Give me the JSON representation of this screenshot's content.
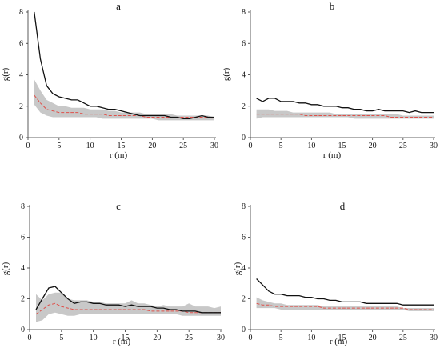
{
  "chart_data": [
    {
      "type": "line",
      "title": "a",
      "xlabel": "r (m)",
      "ylabel": "g(r)",
      "xlim": [
        0,
        30
      ],
      "ylim": [
        0,
        8
      ],
      "xticks": [
        0,
        5,
        10,
        15,
        20,
        25,
        30
      ],
      "yticks": [
        0,
        2,
        4,
        6,
        8
      ],
      "grid": false,
      "observed": {
        "x": [
          1,
          2,
          3,
          4,
          5,
          6,
          7,
          8,
          9,
          10,
          11,
          12,
          13,
          14,
          15,
          16,
          17,
          18,
          19,
          20,
          21,
          22,
          23,
          24,
          25,
          26,
          27,
          28,
          29,
          30
        ],
        "y": [
          8.0,
          5.0,
          3.3,
          2.8,
          2.6,
          2.5,
          2.4,
          2.4,
          2.2,
          2.0,
          2.0,
          1.9,
          1.8,
          1.8,
          1.7,
          1.6,
          1.5,
          1.4,
          1.4,
          1.4,
          1.4,
          1.4,
          1.3,
          1.3,
          1.2,
          1.2,
          1.3,
          1.4,
          1.3,
          1.3
        ]
      },
      "expected": {
        "x": [
          1,
          2,
          3,
          4,
          5,
          6,
          7,
          8,
          9,
          10,
          11,
          12,
          13,
          14,
          15,
          16,
          17,
          18,
          19,
          20,
          21,
          22,
          23,
          24,
          25,
          26,
          27,
          28,
          29,
          30
        ],
        "y": [
          2.7,
          2.2,
          1.8,
          1.7,
          1.6,
          1.6,
          1.6,
          1.6,
          1.5,
          1.5,
          1.5,
          1.5,
          1.4,
          1.4,
          1.4,
          1.4,
          1.4,
          1.4,
          1.3,
          1.3,
          1.3,
          1.3,
          1.3,
          1.3,
          1.3,
          1.3,
          1.3,
          1.3,
          1.3,
          1.2
        ]
      },
      "envelope": {
        "x": [
          1,
          2,
          3,
          4,
          5,
          6,
          7,
          8,
          9,
          10,
          11,
          12,
          13,
          14,
          15,
          16,
          17,
          18,
          19,
          20,
          21,
          22,
          23,
          24,
          25,
          26,
          27,
          28,
          29,
          30
        ],
        "upper": [
          3.7,
          3.0,
          2.4,
          2.2,
          2.0,
          2.0,
          1.9,
          1.9,
          1.9,
          1.8,
          1.8,
          1.8,
          1.7,
          1.7,
          1.6,
          1.6,
          1.6,
          1.6,
          1.5,
          1.5,
          1.5,
          1.5,
          1.5,
          1.4,
          1.4,
          1.4,
          1.4,
          1.4,
          1.4,
          1.3
        ],
        "lower": [
          2.1,
          1.6,
          1.4,
          1.3,
          1.3,
          1.3,
          1.3,
          1.3,
          1.3,
          1.3,
          1.3,
          1.2,
          1.2,
          1.2,
          1.2,
          1.2,
          1.2,
          1.2,
          1.2,
          1.2,
          1.1,
          1.1,
          1.1,
          1.1,
          1.1,
          1.1,
          1.1,
          1.1,
          1.1,
          1.1
        ]
      }
    },
    {
      "type": "line",
      "title": "b",
      "xlabel": "r (m)",
      "ylabel": "g(r)",
      "xlim": [
        0,
        30
      ],
      "ylim": [
        0,
        8
      ],
      "xticks": [
        0,
        5,
        10,
        15,
        20,
        25,
        30
      ],
      "yticks": [
        0,
        2,
        4,
        6,
        8
      ],
      "grid": false,
      "observed": {
        "x": [
          1,
          2,
          3,
          4,
          5,
          6,
          7,
          8,
          9,
          10,
          11,
          12,
          13,
          14,
          15,
          16,
          17,
          18,
          19,
          20,
          21,
          22,
          23,
          24,
          25,
          26,
          27,
          28,
          29,
          30
        ],
        "y": [
          2.5,
          2.3,
          2.5,
          2.5,
          2.3,
          2.3,
          2.3,
          2.2,
          2.2,
          2.1,
          2.1,
          2.0,
          2.0,
          2.0,
          1.9,
          1.9,
          1.8,
          1.8,
          1.7,
          1.7,
          1.8,
          1.7,
          1.7,
          1.7,
          1.7,
          1.6,
          1.7,
          1.6,
          1.6,
          1.6
        ]
      },
      "expected": {
        "x": [
          1,
          2,
          3,
          4,
          5,
          6,
          7,
          8,
          9,
          10,
          11,
          12,
          13,
          14,
          15,
          16,
          17,
          18,
          19,
          20,
          21,
          22,
          23,
          24,
          25,
          26,
          27,
          28,
          29,
          30
        ],
        "y": [
          1.5,
          1.5,
          1.5,
          1.5,
          1.5,
          1.5,
          1.5,
          1.5,
          1.4,
          1.4,
          1.4,
          1.4,
          1.4,
          1.4,
          1.4,
          1.4,
          1.4,
          1.4,
          1.4,
          1.4,
          1.4,
          1.4,
          1.3,
          1.3,
          1.3,
          1.3,
          1.3,
          1.3,
          1.3,
          1.3
        ]
      },
      "envelope": {
        "x": [
          1,
          2,
          3,
          4,
          5,
          6,
          7,
          8,
          9,
          10,
          11,
          12,
          13,
          14,
          15,
          16,
          17,
          18,
          19,
          20,
          21,
          22,
          23,
          24,
          25,
          26,
          27,
          28,
          29,
          30
        ],
        "upper": [
          1.8,
          1.8,
          1.8,
          1.7,
          1.7,
          1.7,
          1.6,
          1.6,
          1.6,
          1.6,
          1.6,
          1.6,
          1.6,
          1.5,
          1.5,
          1.5,
          1.5,
          1.5,
          1.5,
          1.5,
          1.5,
          1.5,
          1.5,
          1.5,
          1.4,
          1.4,
          1.4,
          1.4,
          1.4,
          1.4
        ],
        "lower": [
          1.2,
          1.3,
          1.3,
          1.3,
          1.3,
          1.3,
          1.3,
          1.3,
          1.3,
          1.3,
          1.3,
          1.3,
          1.3,
          1.3,
          1.3,
          1.3,
          1.2,
          1.2,
          1.2,
          1.2,
          1.2,
          1.2,
          1.2,
          1.2,
          1.2,
          1.2,
          1.2,
          1.2,
          1.2,
          1.2
        ]
      }
    },
    {
      "type": "line",
      "title": "c",
      "xlabel": "r (m)",
      "ylabel": "g(r)",
      "xlim": [
        0,
        30
      ],
      "ylim": [
        0,
        8
      ],
      "xticks": [
        0,
        5,
        10,
        15,
        20,
        25,
        30
      ],
      "yticks": [
        0,
        2,
        4,
        6,
        8
      ],
      "grid": false,
      "observed": {
        "x": [
          1,
          2,
          3,
          4,
          5,
          6,
          7,
          8,
          9,
          10,
          11,
          12,
          13,
          14,
          15,
          16,
          17,
          18,
          19,
          20,
          21,
          22,
          23,
          24,
          25,
          26,
          27,
          28,
          29,
          30
        ],
        "y": [
          1.3,
          2.0,
          2.7,
          2.8,
          2.4,
          2.0,
          1.7,
          1.8,
          1.8,
          1.7,
          1.7,
          1.6,
          1.6,
          1.6,
          1.5,
          1.6,
          1.5,
          1.5,
          1.5,
          1.4,
          1.4,
          1.3,
          1.3,
          1.2,
          1.2,
          1.2,
          1.1,
          1.1,
          1.1,
          1.1
        ]
      },
      "expected": {
        "x": [
          1,
          2,
          3,
          4,
          5,
          6,
          7,
          8,
          9,
          10,
          11,
          12,
          13,
          14,
          15,
          16,
          17,
          18,
          19,
          20,
          21,
          22,
          23,
          24,
          25,
          26,
          27,
          28,
          29,
          30
        ],
        "y": [
          1.0,
          1.3,
          1.6,
          1.7,
          1.5,
          1.4,
          1.3,
          1.3,
          1.3,
          1.3,
          1.3,
          1.3,
          1.3,
          1.3,
          1.3,
          1.3,
          1.3,
          1.3,
          1.2,
          1.2,
          1.2,
          1.2,
          1.2,
          1.2,
          1.1,
          1.1,
          1.1,
          1.1,
          1.1,
          1.1
        ]
      },
      "envelope": {
        "x": [
          1,
          2,
          3,
          4,
          5,
          6,
          7,
          8,
          9,
          10,
          11,
          12,
          13,
          14,
          15,
          16,
          17,
          18,
          19,
          20,
          21,
          22,
          23,
          24,
          25,
          26,
          27,
          28,
          29,
          30
        ],
        "upper": [
          2.3,
          1.9,
          2.3,
          2.4,
          2.4,
          2.0,
          1.9,
          1.9,
          1.9,
          1.8,
          1.8,
          1.7,
          1.7,
          1.7,
          1.7,
          1.9,
          1.7,
          1.7,
          1.6,
          1.5,
          1.6,
          1.5,
          1.5,
          1.5,
          1.7,
          1.5,
          1.5,
          1.5,
          1.4,
          1.5
        ],
        "lower": [
          0.5,
          0.6,
          1.0,
          1.1,
          1.0,
          0.9,
          0.9,
          1.0,
          1.0,
          1.0,
          1.0,
          1.0,
          1.0,
          1.0,
          1.0,
          1.0,
          1.0,
          1.0,
          1.0,
          1.0,
          1.0,
          1.0,
          1.0,
          0.9,
          0.9,
          0.9,
          0.9,
          0.9,
          0.9,
          0.9
        ]
      }
    },
    {
      "type": "line",
      "title": "d",
      "xlabel": "r (m)",
      "ylabel": "g(r)",
      "xlim": [
        0,
        30
      ],
      "ylim": [
        0,
        8
      ],
      "xticks": [
        0,
        5,
        10,
        15,
        20,
        25,
        30
      ],
      "yticks": [
        0,
        2,
        4,
        6,
        8
      ],
      "grid": false,
      "observed": {
        "x": [
          1,
          2,
          3,
          4,
          5,
          6,
          7,
          8,
          9,
          10,
          11,
          12,
          13,
          14,
          15,
          16,
          17,
          18,
          19,
          20,
          21,
          22,
          23,
          24,
          25,
          26,
          27,
          28,
          29,
          30
        ],
        "y": [
          3.3,
          2.9,
          2.5,
          2.3,
          2.3,
          2.2,
          2.2,
          2.2,
          2.1,
          2.1,
          2.0,
          2.0,
          1.9,
          1.9,
          1.8,
          1.8,
          1.8,
          1.8,
          1.7,
          1.7,
          1.7,
          1.7,
          1.7,
          1.7,
          1.6,
          1.6,
          1.6,
          1.6,
          1.6,
          1.6
        ]
      },
      "expected": {
        "x": [
          1,
          2,
          3,
          4,
          5,
          6,
          7,
          8,
          9,
          10,
          11,
          12,
          13,
          14,
          15,
          16,
          17,
          18,
          19,
          20,
          21,
          22,
          23,
          24,
          25,
          26,
          27,
          28,
          29,
          30
        ],
        "y": [
          1.7,
          1.6,
          1.6,
          1.5,
          1.5,
          1.5,
          1.5,
          1.5,
          1.5,
          1.5,
          1.5,
          1.4,
          1.4,
          1.4,
          1.4,
          1.4,
          1.4,
          1.4,
          1.4,
          1.4,
          1.4,
          1.4,
          1.4,
          1.4,
          1.4,
          1.3,
          1.3,
          1.3,
          1.3,
          1.3
        ]
      },
      "envelope": {
        "x": [
          1,
          2,
          3,
          4,
          5,
          6,
          7,
          8,
          9,
          10,
          11,
          12,
          13,
          14,
          15,
          16,
          17,
          18,
          19,
          20,
          21,
          22,
          23,
          24,
          25,
          26,
          27,
          28,
          29,
          30
        ],
        "upper": [
          2.1,
          1.9,
          1.8,
          1.7,
          1.7,
          1.6,
          1.6,
          1.6,
          1.6,
          1.6,
          1.6,
          1.5,
          1.5,
          1.5,
          1.5,
          1.5,
          1.5,
          1.5,
          1.5,
          1.5,
          1.5,
          1.5,
          1.5,
          1.5,
          1.4,
          1.4,
          1.4,
          1.4,
          1.4,
          1.4
        ],
        "lower": [
          1.4,
          1.4,
          1.4,
          1.4,
          1.3,
          1.3,
          1.3,
          1.3,
          1.3,
          1.3,
          1.3,
          1.3,
          1.3,
          1.3,
          1.3,
          1.3,
          1.3,
          1.3,
          1.3,
          1.3,
          1.3,
          1.3,
          1.3,
          1.3,
          1.3,
          1.2,
          1.2,
          1.2,
          1.2,
          1.2
        ]
      }
    }
  ],
  "colors": {
    "observed": "#111111",
    "expected": "#e0504a",
    "envelope": "#c8c8c8",
    "axis": "#333333"
  }
}
